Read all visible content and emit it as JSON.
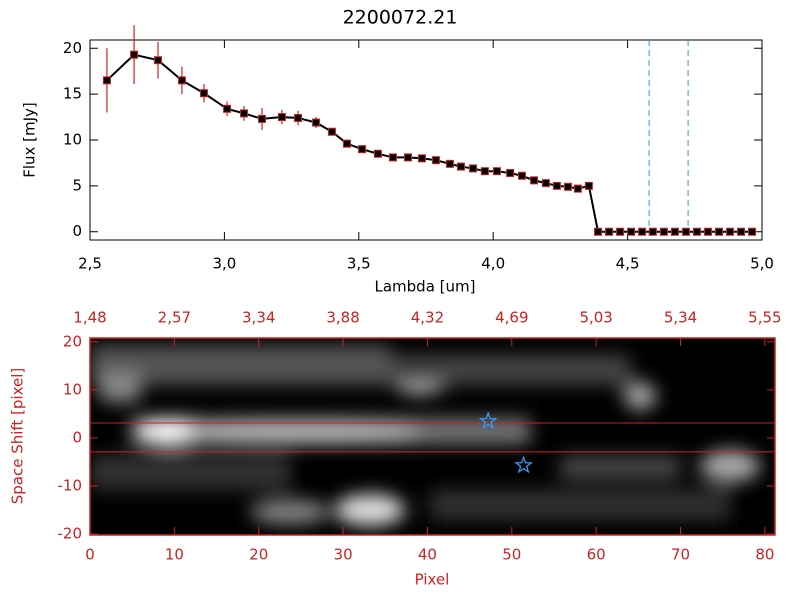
{
  "chart_data": [
    {
      "type": "line",
      "title": "2200072.21",
      "x_label": "Lambda [um]",
      "y_label": "Flux [mJy]",
      "color": "#000000",
      "error_color": "#cc2222",
      "x": [
        2.563,
        2.664,
        2.753,
        2.842,
        2.924,
        3.01,
        3.073,
        3.14,
        3.214,
        3.274,
        3.341,
        3.4,
        3.456,
        3.512,
        3.571,
        3.627,
        3.683,
        3.735,
        3.787,
        3.839,
        3.88,
        3.925,
        3.969,
        4.014,
        4.063,
        4.107,
        4.152,
        4.196,
        4.237,
        4.278,
        4.315,
        4.356,
        4.39,
        4.431,
        4.472,
        4.513,
        4.554,
        4.594,
        4.635,
        4.676,
        4.717,
        4.758,
        4.799,
        4.84,
        4.881,
        4.922,
        4.963
      ],
      "values": [
        16.5,
        19.3,
        18.7,
        16.5,
        15.1,
        13.4,
        12.9,
        12.3,
        12.5,
        12.4,
        11.9,
        10.9,
        9.6,
        9.0,
        8.5,
        8.1,
        8.1,
        8.0,
        7.8,
        7.4,
        7.1,
        6.9,
        6.6,
        6.6,
        6.4,
        6.1,
        5.6,
        5.3,
        5.0,
        4.9,
        4.7,
        5.0,
        0,
        0,
        0,
        0,
        0,
        0,
        0,
        0,
        0,
        0,
        0,
        0,
        0,
        0,
        0
      ],
      "errors": [
        3.5,
        3.2,
        2.0,
        1.5,
        1.0,
        0.8,
        0.8,
        1.2,
        0.8,
        0.8,
        0.6,
        0.4,
        0.3,
        0.3,
        0.3,
        0.3,
        0.3,
        0.3,
        0.3,
        0.3,
        0.3,
        0.3,
        0.3,
        0.3,
        0.3,
        0.3,
        0.3,
        0.3,
        0.3,
        0.3,
        0.3,
        0.3,
        0,
        0,
        0,
        0,
        0,
        0,
        0,
        0,
        0,
        0,
        0,
        0,
        0,
        0,
        0
      ],
      "vlines": [
        4.58,
        4.725
      ],
      "vline_color": "#3399dd",
      "xlim": [
        2.5,
        5.0
      ],
      "ylim": [
        -0.9,
        20.9
      ],
      "xticks": [
        {
          "value": 2.5,
          "label": "2,5"
        },
        {
          "value": 3.0,
          "label": "3,0"
        },
        {
          "value": 3.5,
          "label": "3,5"
        },
        {
          "value": 4.0,
          "label": "4,0"
        },
        {
          "value": 4.5,
          "label": "4,5"
        },
        {
          "value": 5.0,
          "label": "5,0"
        }
      ],
      "yticks": [
        0,
        5,
        10,
        15,
        20
      ]
    },
    {
      "type": "image",
      "x_label": "Pixel",
      "y_label": "Space Shift [pixel]",
      "axis_color": "#cc2222",
      "xlim": [
        0,
        81.2
      ],
      "ylim": [
        -20.2,
        20.8
      ],
      "xticks": [
        0,
        10,
        20,
        30,
        40,
        50,
        60,
        70,
        80
      ],
      "yticks": [
        -20,
        -10,
        0,
        10,
        20
      ],
      "x2ticks": [
        {
          "value": 0,
          "label": "1,48"
        },
        {
          "value": 10,
          "label": "2,57"
        },
        {
          "value": 20,
          "label": "3,34"
        },
        {
          "value": 30,
          "label": "3,88"
        },
        {
          "value": 40,
          "label": "4,32"
        },
        {
          "value": 50,
          "label": "4,69"
        },
        {
          "value": 60,
          "label": "5,03"
        },
        {
          "value": 70,
          "label": "5,34"
        },
        {
          "value": 80,
          "label": "5,55"
        }
      ],
      "hlines": [
        3.1,
        -2.9
      ],
      "star_color": "#3399ff",
      "stars": {
        "x": [
          47.2,
          51.4
        ],
        "y": [
          3.5,
          -5.7
        ]
      }
    }
  ]
}
